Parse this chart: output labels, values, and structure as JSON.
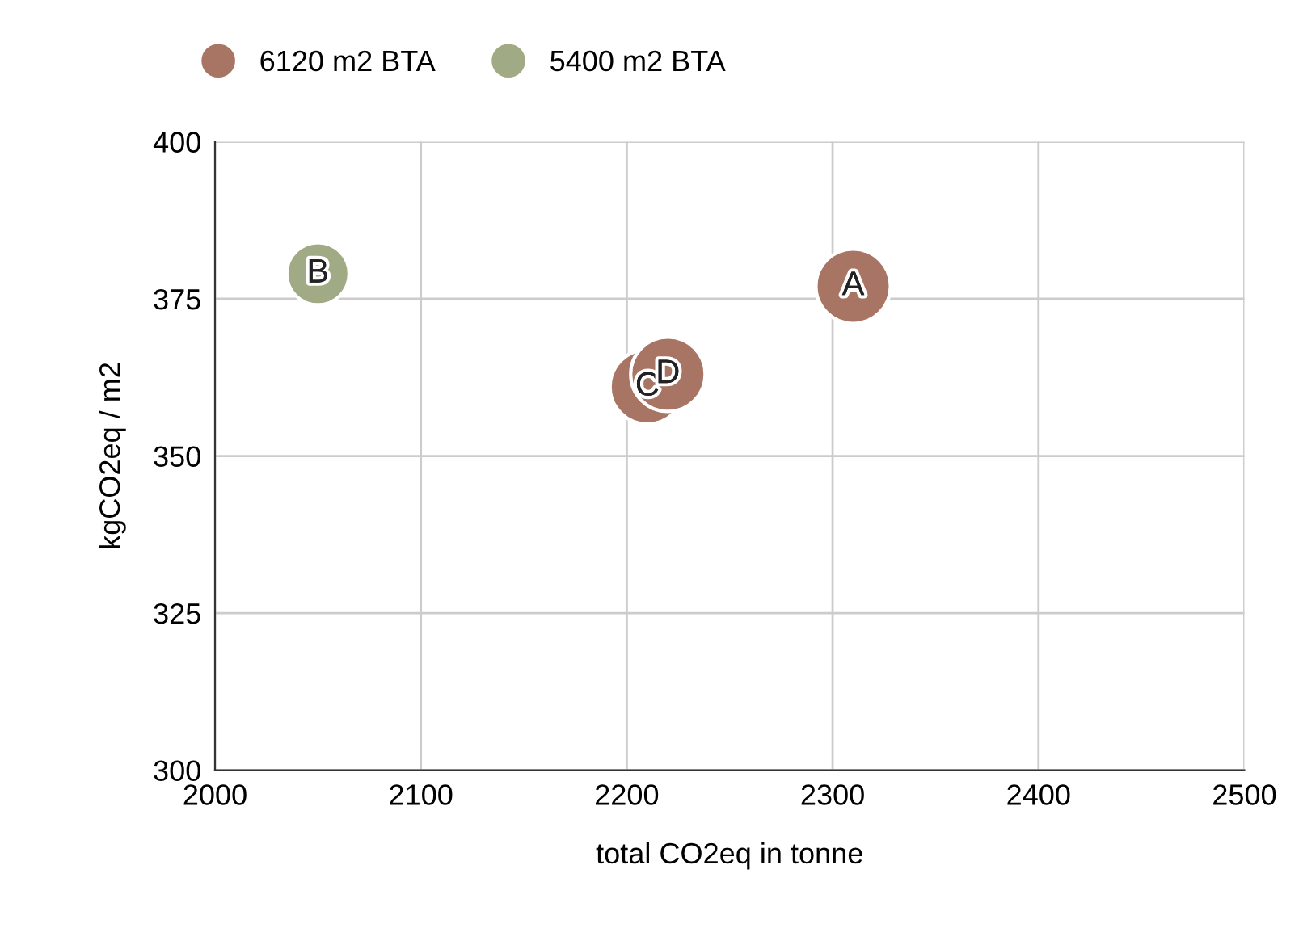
{
  "chart_data": {
    "type": "bubble",
    "xlabel": "total CO2eq in tonne",
    "ylabel": "kgCO2eq / m2",
    "series": [
      {
        "name": "6120 m2 BTA",
        "color": "#a87565",
        "x": [
          2310,
          2210,
          2220
        ],
        "values": [
          377,
          361,
          363
        ],
        "sizes": [
          1,
          1,
          1
        ]
      },
      {
        "name": "5400 m2 BTA",
        "color": "#a0aa84",
        "x": [
          2050
        ],
        "values": [
          379
        ],
        "sizes": [
          0.7
        ]
      }
    ],
    "annotations": [
      {
        "text": "A",
        "x": 2310,
        "y": 377
      },
      {
        "text": "C",
        "x": 2210,
        "y": 361
      },
      {
        "text": "D",
        "x": 2220,
        "y": 363
      },
      {
        "text": "B",
        "x": 2050,
        "y": 379
      }
    ],
    "xlim": [
      2000,
      2500
    ],
    "xticks": [
      2000,
      2100,
      2200,
      2300,
      2400,
      2500
    ],
    "ylim": [
      300,
      400
    ],
    "yticks": [
      300,
      325,
      350,
      375,
      400
    ],
    "grid": true,
    "legend": "top left"
  }
}
